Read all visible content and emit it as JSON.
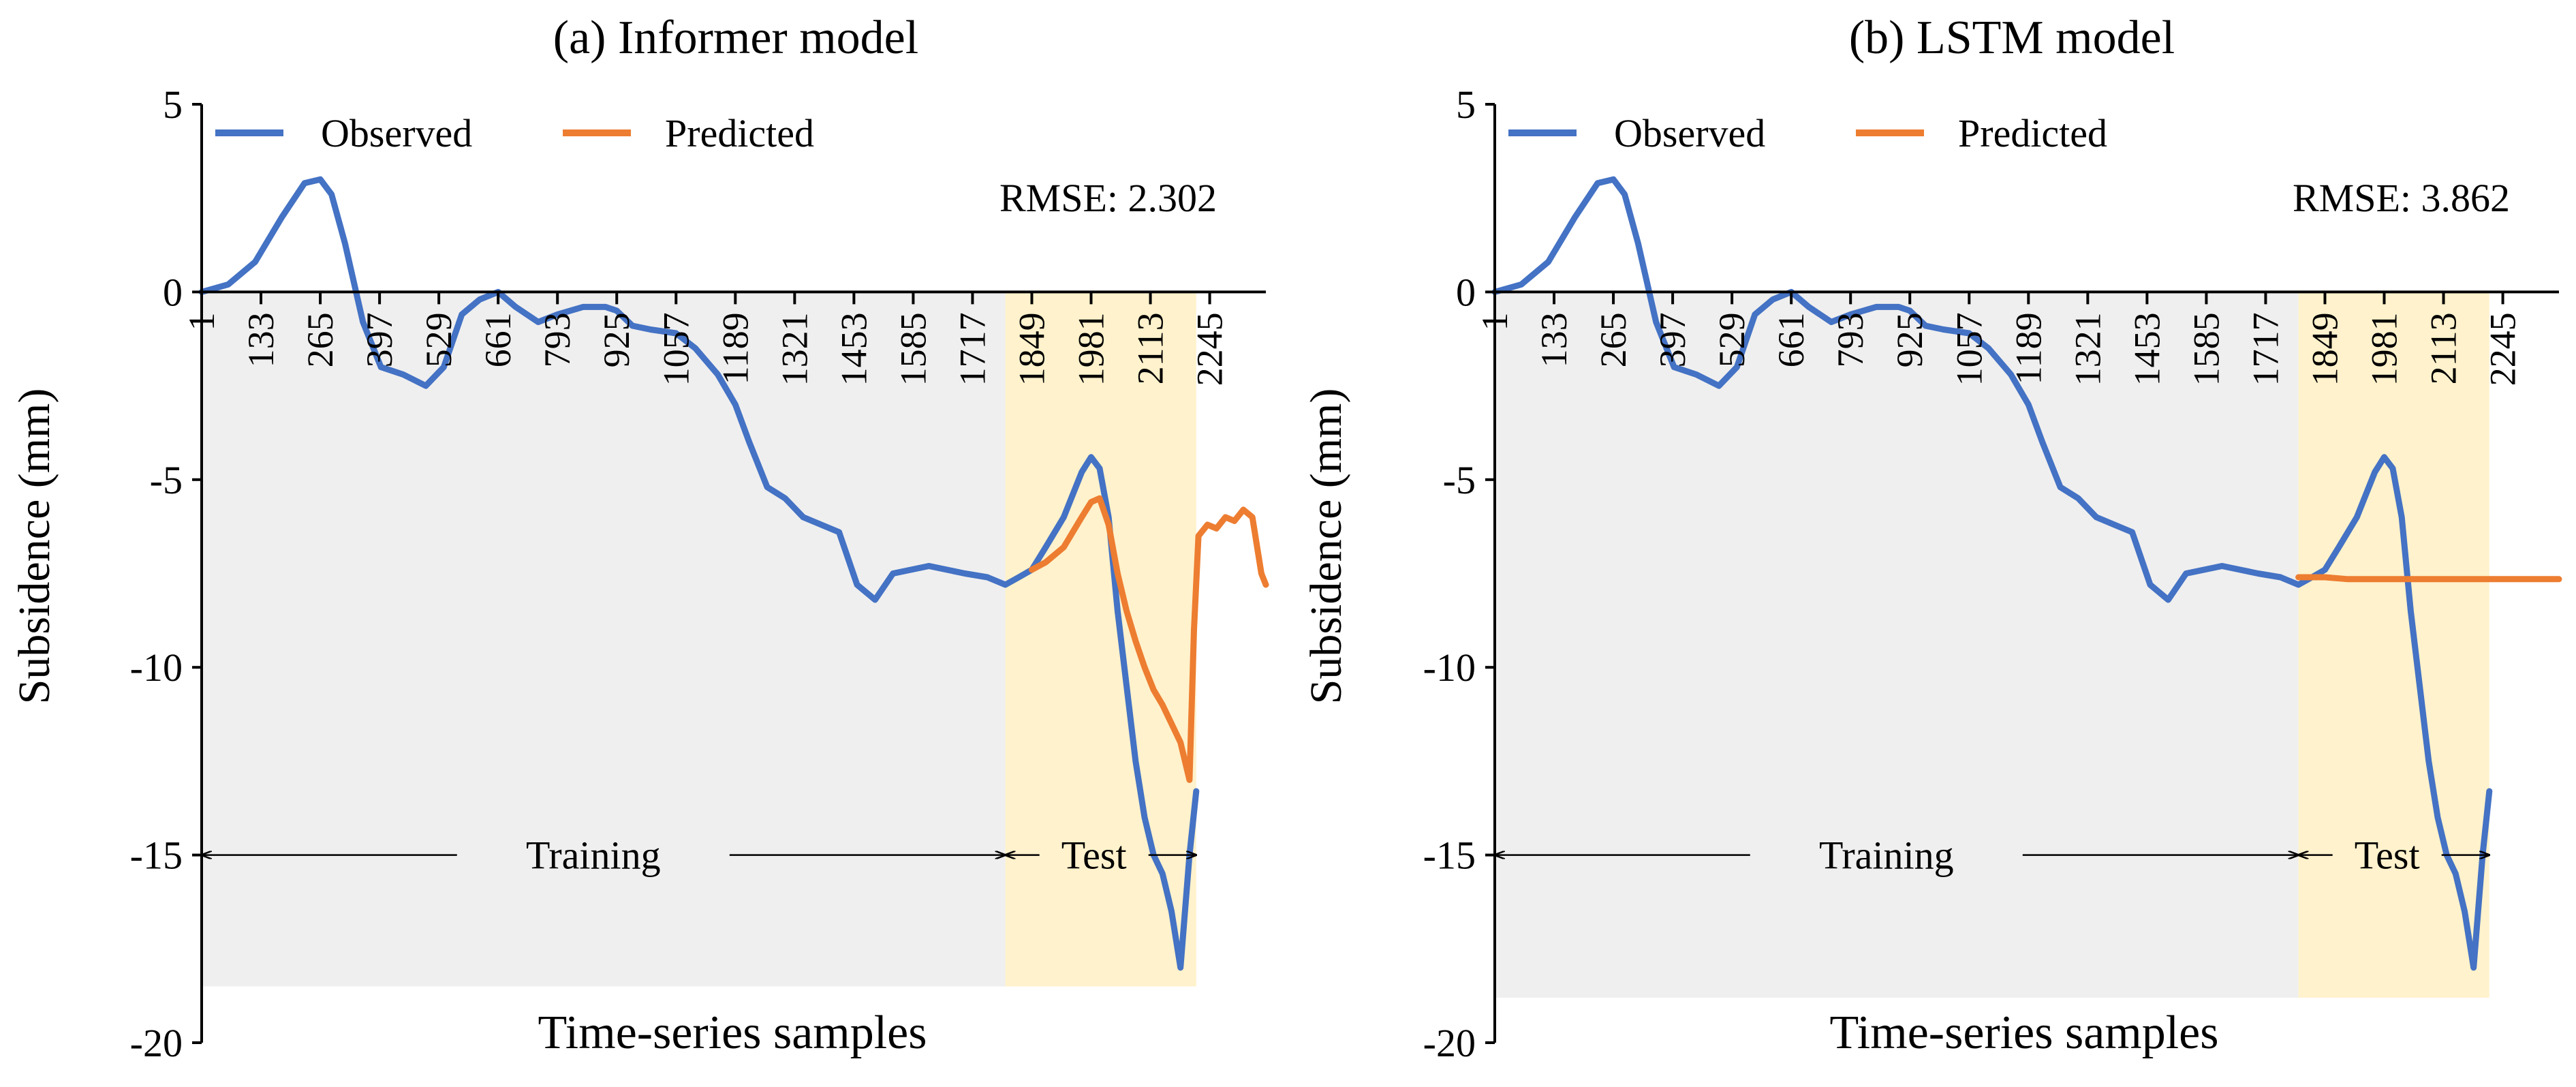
{
  "colors": {
    "observed": "#4472C4",
    "predicted": "#ED7D31",
    "training_bg": "#EFEFEF",
    "test_bg": "#FFF2CC",
    "axis": "#000000"
  },
  "chart_data": [
    {
      "type": "line",
      "title": "(a) Informer model",
      "xlabel": "Time-series samples",
      "ylabel": "Subsidence (mm)",
      "ylim": [
        -20,
        5
      ],
      "yticks": [
        5,
        0,
        -5,
        -10,
        -15,
        -20
      ],
      "xlim": [
        1,
        2370
      ],
      "xticks": [
        1,
        133,
        265,
        397,
        529,
        661,
        793,
        925,
        1057,
        1189,
        1321,
        1453,
        1585,
        1717,
        1849,
        1981,
        2113,
        2245
      ],
      "legend": [
        "Observed",
        "Predicted"
      ],
      "legend_position": "top-left",
      "annotation": "RMSE: 2.302",
      "regions": {
        "training": {
          "label": "Training",
          "from": 1,
          "to": 1790,
          "bottom": -18.5
        },
        "test": {
          "label": "Test",
          "from": 1790,
          "to": 2215,
          "bottom": -18.5
        }
      },
      "series": [
        {
          "name": "Observed",
          "x": [
            1,
            60,
            120,
            180,
            230,
            265,
            290,
            320,
            360,
            400,
            450,
            500,
            540,
            580,
            620,
            661,
            700,
            750,
            793,
            850,
            900,
            925,
            960,
            1000,
            1057,
            1100,
            1150,
            1189,
            1220,
            1260,
            1300,
            1340,
            1380,
            1420,
            1460,
            1500,
            1540,
            1580,
            1620,
            1660,
            1700,
            1750,
            1790,
            1820,
            1849,
            1880,
            1920,
            1960,
            1981,
            2000,
            2020,
            2040,
            2060,
            2080,
            2100,
            2120,
            2140,
            2160,
            2180,
            2200,
            2215
          ],
          "y": [
            0,
            0.2,
            0.8,
            2.0,
            2.9,
            3.0,
            2.6,
            1.3,
            -0.8,
            -2.0,
            -2.2,
            -2.5,
            -2.0,
            -0.6,
            -0.2,
            0,
            -0.4,
            -0.8,
            -0.6,
            -0.4,
            -0.4,
            -0.5,
            -0.9,
            -1.0,
            -1.1,
            -1.5,
            -2.2,
            -3.0,
            -4.0,
            -5.2,
            -5.5,
            -6.0,
            -6.2,
            -6.4,
            -7.8,
            -8.2,
            -7.5,
            -7.4,
            -7.3,
            -7.4,
            -7.5,
            -7.6,
            -7.8,
            -7.6,
            -7.4,
            -6.8,
            -6.0,
            -4.8,
            -4.4,
            -4.7,
            -6.0,
            -8.5,
            -10.5,
            -12.5,
            -14.0,
            -15.0,
            -15.5,
            -16.5,
            -18.0,
            -15.0,
            -13.3
          ]
        },
        {
          "name": "Predicted",
          "x": [
            1849,
            1880,
            1920,
            1960,
            1981,
            2000,
            2020,
            2040,
            2060,
            2080,
            2100,
            2120,
            2140,
            2160,
            2180,
            2200,
            2210,
            2220,
            2240,
            2260,
            2280,
            2300,
            2320,
            2340,
            2360,
            2370
          ],
          "y": [
            -7.4,
            -7.2,
            -6.8,
            -6.0,
            -5.6,
            -5.5,
            -6.2,
            -7.5,
            -8.5,
            -9.3,
            -10.0,
            -10.6,
            -11.0,
            -11.5,
            -12.0,
            -13.0,
            -9.0,
            -6.5,
            -6.2,
            -6.3,
            -6.0,
            -6.1,
            -5.8,
            -6.0,
            -7.5,
            -7.8
          ]
        }
      ]
    },
    {
      "type": "line",
      "title": "(b) LSTM model",
      "xlabel": "Time-series samples",
      "ylabel": "Subsidence (mm)",
      "ylim": [
        -20,
        5
      ],
      "yticks": [
        5,
        0,
        -5,
        -10,
        -15,
        -20
      ],
      "xlim": [
        1,
        2370
      ],
      "xticks": [
        1,
        133,
        265,
        397,
        529,
        661,
        793,
        925,
        1057,
        1189,
        1321,
        1453,
        1585,
        1717,
        1849,
        1981,
        2113,
        2245
      ],
      "legend": [
        "Observed",
        "Predicted"
      ],
      "legend_position": "top-left",
      "annotation": "RMSE: 3.862",
      "regions": {
        "training": {
          "label": "Training",
          "from": 1,
          "to": 1790,
          "bottom": -18.8
        },
        "test": {
          "label": "Test",
          "from": 1790,
          "to": 2215,
          "bottom": -18.8
        }
      },
      "series": [
        {
          "name": "Observed",
          "x": [
            1,
            60,
            120,
            180,
            230,
            265,
            290,
            320,
            360,
            400,
            450,
            500,
            540,
            580,
            620,
            661,
            700,
            750,
            793,
            850,
            900,
            925,
            960,
            1000,
            1057,
            1100,
            1150,
            1189,
            1220,
            1260,
            1300,
            1340,
            1380,
            1420,
            1460,
            1500,
            1540,
            1580,
            1620,
            1660,
            1700,
            1750,
            1790,
            1820,
            1849,
            1880,
            1920,
            1960,
            1981,
            2000,
            2020,
            2040,
            2060,
            2080,
            2100,
            2120,
            2140,
            2160,
            2180,
            2200,
            2215
          ],
          "y": [
            0,
            0.2,
            0.8,
            2.0,
            2.9,
            3.0,
            2.6,
            1.3,
            -0.8,
            -2.0,
            -2.2,
            -2.5,
            -2.0,
            -0.6,
            -0.2,
            0,
            -0.4,
            -0.8,
            -0.6,
            -0.4,
            -0.4,
            -0.5,
            -0.9,
            -1.0,
            -1.1,
            -1.5,
            -2.2,
            -3.0,
            -4.0,
            -5.2,
            -5.5,
            -6.0,
            -6.2,
            -6.4,
            -7.8,
            -8.2,
            -7.5,
            -7.4,
            -7.3,
            -7.4,
            -7.5,
            -7.6,
            -7.8,
            -7.6,
            -7.4,
            -6.8,
            -6.0,
            -4.8,
            -4.4,
            -4.7,
            -6.0,
            -8.5,
            -10.5,
            -12.5,
            -14.0,
            -15.0,
            -15.5,
            -16.5,
            -18.0,
            -15.0,
            -13.3
          ]
        },
        {
          "name": "Predicted",
          "x": [
            1790,
            1849,
            1900,
            2000,
            2100,
            2200,
            2300,
            2370
          ],
          "y": [
            -7.6,
            -7.6,
            -7.65,
            -7.65,
            -7.65,
            -7.65,
            -7.65,
            -7.65
          ]
        }
      ]
    }
  ]
}
